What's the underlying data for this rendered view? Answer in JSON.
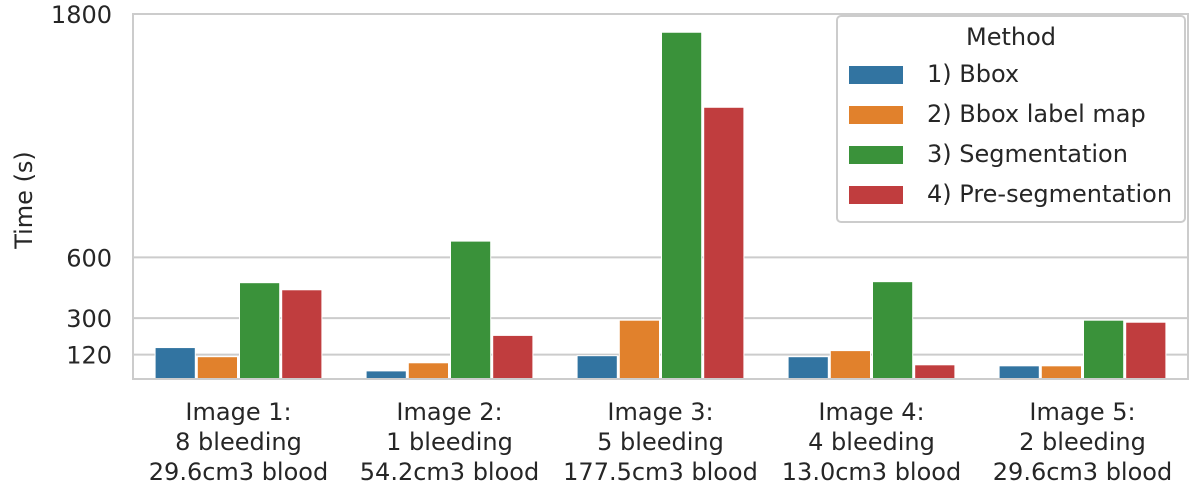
{
  "chart_data": {
    "type": "bar",
    "title": "",
    "xlabel": "",
    "ylabel": "Time (s)",
    "ylim": [
      0,
      1800
    ],
    "yticks": [
      120,
      300,
      600,
      1800
    ],
    "grid": true,
    "legend": {
      "title": "Method",
      "placement": "top-right"
    },
    "categories": [
      [
        "Image 1:",
        "8 bleeding",
        "29.6cm3 blood"
      ],
      [
        "Image 2:",
        "1 bleeding",
        "54.2cm3 blood"
      ],
      [
        "Image 3:",
        "5 bleeding",
        "177.5cm3 blood"
      ],
      [
        "Image 4:",
        "4 bleeding",
        "13.0cm3 blood"
      ],
      [
        "Image 5:",
        "2 bleeding",
        "29.6cm3 blood"
      ]
    ],
    "series": [
      {
        "name": "1) Bbox",
        "color": "#3274a1",
        "values": [
          155,
          40,
          115,
          110,
          65
        ]
      },
      {
        "name": "2) Bbox label map",
        "color": "#e1812c",
        "values": [
          110,
          80,
          290,
          140,
          65
        ]
      },
      {
        "name": "3) Segmentation",
        "color": "#3a923a",
        "values": [
          475,
          680,
          1710,
          480,
          290
        ]
      },
      {
        "name": "4) Pre-segmentation",
        "color": "#c03d3e",
        "values": [
          440,
          215,
          1340,
          70,
          280
        ]
      }
    ]
  }
}
